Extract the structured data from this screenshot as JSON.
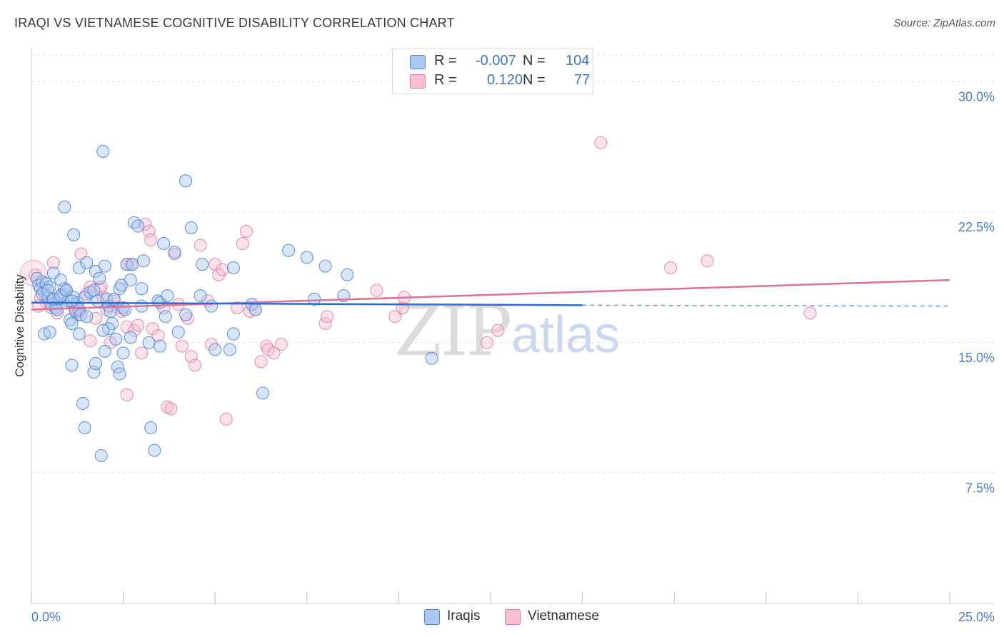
{
  "title": "IRAQI VS VIETNAMESE COGNITIVE DISABILITY CORRELATION CHART",
  "source": "Source: ZipAtlas.com",
  "watermark": {
    "part1": "ZIP",
    "part2": "atlas"
  },
  "colors": {
    "iraqis_fill": "#aac8f2",
    "iraqis_stroke": "#4f86d6",
    "iraqis_line": "#2a6dd1",
    "vietnamese_fill": "#f7bfd2",
    "vietnamese_stroke": "#e07aa0",
    "vietnamese_line": "#e0709a",
    "axis_label": "#4a7fd4",
    "grid": "#e3e3e3"
  },
  "legend": {
    "rows": [
      {
        "r_label": "R =",
        "r_value": "-0.007",
        "n_label": "N =",
        "n_value": "104",
        "series": "Iraqis"
      },
      {
        "r_label": "R =",
        "r_value": "0.120",
        "n_label": "N =",
        "n_value": "77",
        "series": "Vietnamese"
      }
    ]
  },
  "bottom_legend": {
    "iraqis": "Iraqis",
    "vietnamese": "Vietnamese"
  },
  "chart_data": {
    "type": "scatter",
    "ylabel": "Cognitive Disability",
    "xlabel": "",
    "xlim": [
      0,
      25
    ],
    "ylim": [
      0,
      31.5
    ],
    "x_tick_labels": [
      "0.0%",
      "25.0%"
    ],
    "y_ticks": [
      7.5,
      15.0,
      22.5,
      30.0
    ],
    "y_tick_labels": [
      "7.5%",
      "15.0%",
      "22.5%",
      "30.0%"
    ],
    "grid": true,
    "legend_placement": "top-center",
    "series": [
      {
        "name": "Iraqis",
        "trend": {
          "x0": 0,
          "y0": 17.3,
          "x1": 15,
          "y1": 17.15,
          "dashed_to_x": 25,
          "dashed_to_y": 17.1
        },
        "points": [
          [
            0.15,
            18.7
          ],
          [
            0.2,
            18.3
          ],
          [
            0.25,
            18.1
          ],
          [
            0.3,
            18.5
          ],
          [
            0.35,
            17.9
          ],
          [
            0.4,
            18.4
          ],
          [
            0.45,
            17.6
          ],
          [
            0.5,
            18.2
          ],
          [
            0.55,
            17.2
          ],
          [
            0.6,
            19.0
          ],
          [
            0.65,
            17.0
          ],
          [
            0.7,
            16.9
          ],
          [
            0.75,
            17.5
          ],
          [
            0.8,
            18.6
          ],
          [
            0.85,
            17.8
          ],
          [
            0.9,
            18.1
          ],
          [
            1.0,
            17.4
          ],
          [
            1.05,
            16.3
          ],
          [
            1.1,
            16.1
          ],
          [
            1.15,
            17.6
          ],
          [
            1.2,
            16.8
          ],
          [
            1.25,
            17.3
          ],
          [
            1.3,
            16.9
          ],
          [
            1.35,
            16.6
          ],
          [
            0.9,
            22.8
          ],
          [
            1.15,
            21.2
          ],
          [
            1.3,
            19.3
          ],
          [
            1.45,
            17.6
          ],
          [
            1.5,
            19.6
          ],
          [
            1.6,
            17.9
          ],
          [
            1.7,
            18.0
          ],
          [
            1.75,
            19.1
          ],
          [
            1.8,
            17.4
          ],
          [
            1.85,
            18.7
          ],
          [
            2.0,
            19.4
          ],
          [
            2.05,
            17.5
          ],
          [
            2.1,
            17.1
          ],
          [
            2.15,
            16.8
          ],
          [
            2.2,
            16.1
          ],
          [
            2.3,
            15.2
          ],
          [
            2.4,
            18.1
          ],
          [
            2.45,
            18.3
          ],
          [
            2.5,
            17.0
          ],
          [
            2.55,
            16.9
          ],
          [
            2.6,
            19.5
          ],
          [
            2.7,
            18.6
          ],
          [
            2.75,
            19.5
          ],
          [
            2.8,
            21.9
          ],
          [
            2.9,
            21.7
          ],
          [
            3.0,
            18.1
          ],
          [
            3.05,
            19.7
          ],
          [
            3.2,
            15.0
          ],
          [
            3.45,
            17.4
          ],
          [
            3.5,
            17.3
          ],
          [
            3.6,
            20.7
          ],
          [
            3.65,
            16.5
          ],
          [
            3.7,
            17.7
          ],
          [
            3.9,
            20.2
          ],
          [
            4.2,
            16.6
          ],
          [
            4.35,
            21.6
          ],
          [
            4.6,
            17.7
          ],
          [
            4.65,
            19.5
          ],
          [
            4.9,
            17.1
          ],
          [
            5.0,
            14.6
          ],
          [
            5.4,
            14.6
          ],
          [
            5.5,
            19.3
          ],
          [
            5.5,
            15.5
          ],
          [
            6.0,
            17.2
          ],
          [
            6.1,
            16.9
          ],
          [
            6.3,
            12.1
          ],
          [
            7.0,
            20.3
          ],
          [
            7.5,
            19.9
          ],
          [
            7.7,
            17.5
          ],
          [
            8.0,
            19.4
          ],
          [
            8.5,
            17.7
          ],
          [
            8.6,
            18.9
          ],
          [
            10.9,
            14.1
          ],
          [
            0.35,
            15.5
          ],
          [
            0.5,
            15.6
          ],
          [
            1.1,
            13.7
          ],
          [
            1.3,
            15.5
          ],
          [
            1.4,
            11.5
          ],
          [
            1.45,
            10.1
          ],
          [
            1.7,
            13.3
          ],
          [
            1.75,
            13.8
          ],
          [
            1.9,
            8.5
          ],
          [
            2.0,
            14.5
          ],
          [
            2.1,
            15.8
          ],
          [
            2.35,
            13.6
          ],
          [
            2.4,
            13.2
          ],
          [
            2.5,
            14.4
          ],
          [
            2.7,
            15.3
          ],
          [
            3.25,
            10.1
          ],
          [
            3.35,
            8.8
          ],
          [
            3.5,
            14.8
          ],
          [
            4.0,
            15.6
          ],
          [
            1.95,
            26.0
          ],
          [
            4.2,
            24.3
          ],
          [
            0.3,
            17.8
          ],
          [
            0.45,
            18.0
          ],
          [
            0.6,
            17.5
          ],
          [
            0.8,
            17.7
          ],
          [
            0.95,
            18.0
          ],
          [
            1.1,
            17.4
          ],
          [
            1.5,
            16.5
          ],
          [
            1.95,
            15.7
          ],
          [
            2.25,
            17.5
          ],
          [
            3.0,
            17.1
          ]
        ]
      },
      {
        "name": "Vietnamese",
        "trend": {
          "x0": 0,
          "y0": 16.9,
          "x1": 25,
          "y1": 18.6
        },
        "points": [
          [
            0.1,
            18.9
          ],
          [
            0.25,
            17.6
          ],
          [
            0.4,
            17.3
          ],
          [
            0.55,
            17.0
          ],
          [
            0.7,
            16.7
          ],
          [
            0.85,
            17.8
          ],
          [
            0.95,
            18.0
          ],
          [
            1.1,
            17.2
          ],
          [
            1.2,
            16.9
          ],
          [
            1.25,
            16.6
          ],
          [
            1.35,
            20.1
          ],
          [
            1.5,
            17.8
          ],
          [
            1.6,
            15.1
          ],
          [
            1.75,
            16.4
          ],
          [
            1.85,
            18.1
          ],
          [
            1.95,
            17.6
          ],
          [
            2.05,
            16.9
          ],
          [
            2.15,
            15.0
          ],
          [
            2.25,
            17.4
          ],
          [
            2.35,
            17.0
          ],
          [
            2.45,
            16.8
          ],
          [
            2.6,
            15.9
          ],
          [
            2.7,
            19.5
          ],
          [
            2.8,
            15.7
          ],
          [
            2.9,
            16.0
          ],
          [
            3.0,
            14.4
          ],
          [
            3.1,
            21.8
          ],
          [
            3.2,
            21.4
          ],
          [
            3.3,
            15.8
          ],
          [
            3.45,
            15.4
          ],
          [
            3.6,
            17.0
          ],
          [
            3.7,
            11.3
          ],
          [
            3.8,
            11.2
          ],
          [
            3.9,
            20.1
          ],
          [
            4.0,
            17.2
          ],
          [
            4.1,
            14.8
          ],
          [
            4.25,
            16.4
          ],
          [
            4.35,
            14.2
          ],
          [
            4.45,
            13.7
          ],
          [
            4.6,
            20.6
          ],
          [
            4.8,
            17.4
          ],
          [
            4.9,
            14.9
          ],
          [
            5.0,
            19.5
          ],
          [
            5.1,
            18.9
          ],
          [
            5.2,
            19.2
          ],
          [
            5.3,
            10.6
          ],
          [
            5.6,
            17.0
          ],
          [
            5.75,
            20.7
          ],
          [
            5.85,
            21.4
          ],
          [
            5.95,
            16.8
          ],
          [
            6.1,
            16.9
          ],
          [
            6.25,
            13.9
          ],
          [
            6.4,
            14.8
          ],
          [
            6.45,
            14.6
          ],
          [
            6.6,
            14.4
          ],
          [
            6.8,
            14.9
          ],
          [
            8.0,
            16.1
          ],
          [
            8.05,
            16.5
          ],
          [
            9.4,
            18.0
          ],
          [
            9.9,
            16.5
          ],
          [
            10.1,
            17.0
          ],
          [
            10.15,
            17.6
          ],
          [
            12.4,
            15.0
          ],
          [
            12.7,
            15.7
          ],
          [
            15.5,
            26.5
          ],
          [
            17.4,
            19.3
          ],
          [
            18.4,
            19.7
          ],
          [
            21.2,
            16.7
          ],
          [
            0.6,
            19.6
          ],
          [
            1.3,
            16.8
          ],
          [
            1.6,
            18.2
          ],
          [
            1.9,
            18.2
          ],
          [
            2.6,
            19.5
          ],
          [
            3.25,
            20.9
          ],
          [
            0.2,
            17.1
          ],
          [
            0.5,
            17.6
          ],
          [
            2.6,
            12.0
          ]
        ]
      }
    ]
  }
}
